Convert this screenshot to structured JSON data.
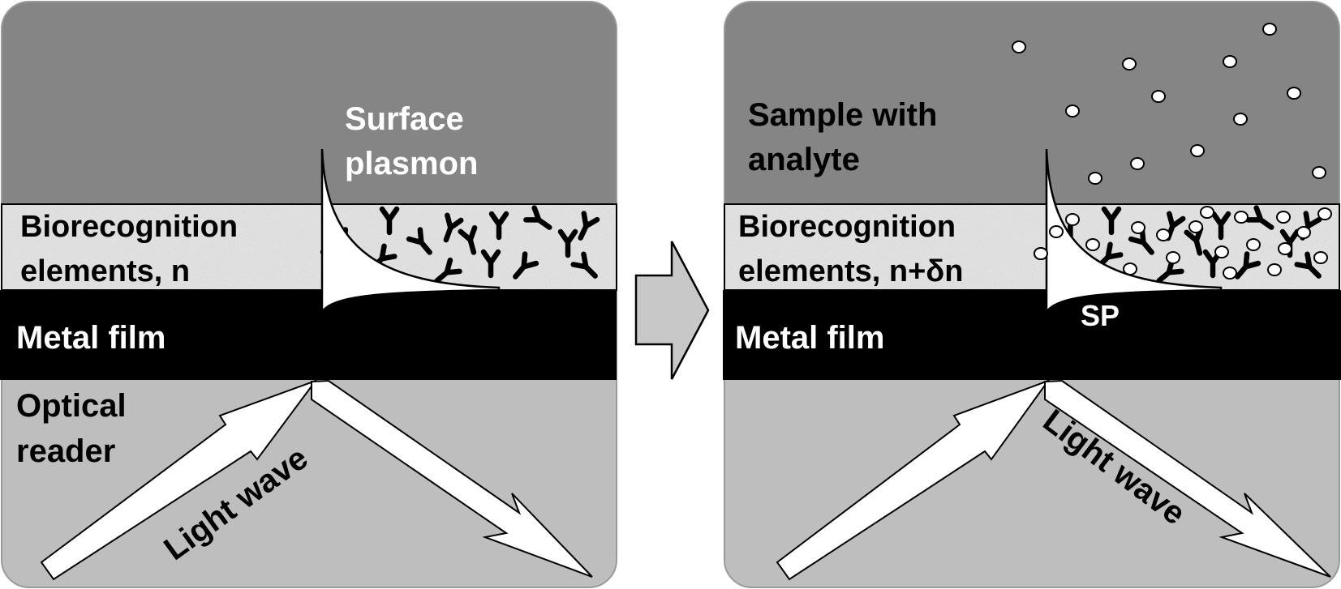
{
  "left_panel": {
    "surface_plasmon_label_line1": "Surface",
    "surface_plasmon_label_line2": "plasmon",
    "bio_label_line1": "Biorecognition",
    "bio_label_line2": "elements, n",
    "metal_label": "Metal film",
    "optical_label_line1": "Optical",
    "optical_label_line2": "reader",
    "light_label": "Light wave"
  },
  "right_panel": {
    "sample_label_line1": "Sample with",
    "sample_label_line2": "analyte",
    "bio_label_line1": "Biorecognition",
    "bio_label_line2": "elements, n+δn",
    "metal_label": "Metal film",
    "sp_label": "SP",
    "light_label": "Light wave"
  },
  "colors": {
    "sample_region": "#858585",
    "reader_region": "#bebebe",
    "metal_film": "#000000",
    "bio_layer": "#d9d9d9",
    "arrow_fill": "#ffffff",
    "transition_arrow": "#c8c8c8"
  },
  "icons": {
    "antibody": "antibody-icon",
    "analyte": "analyte-particle-icon",
    "transition": "transition-arrow-icon"
  }
}
